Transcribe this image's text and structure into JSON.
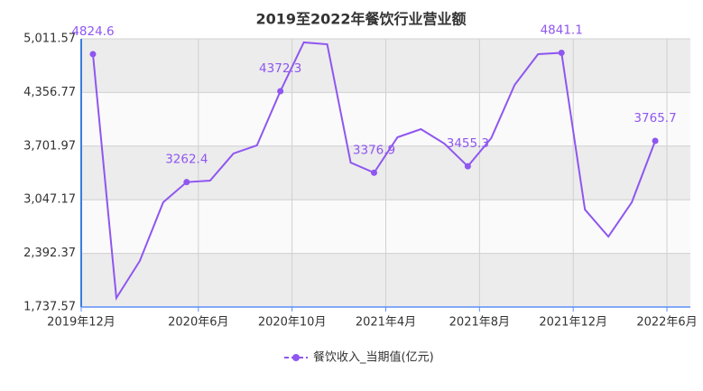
{
  "chart_data": {
    "type": "line",
    "title": "2019至2022年餐饮行业营业额",
    "categories": [
      "2019年12月",
      null,
      null,
      null,
      null,
      "2020年6月",
      null,
      null,
      null,
      "2020年10月",
      null,
      null,
      null,
      "2021年4月",
      null,
      null,
      null,
      "2021年8月",
      null,
      null,
      null,
      "2021年12月",
      null,
      null,
      null,
      "2022年6月"
    ],
    "series": [
      {
        "name": "餐饮收入_当期值(亿元)",
        "color": "#8f56f0",
        "values": [
          4824.6,
          1848,
          2300,
          3016,
          3262.4,
          3281,
          3612,
          3711,
          4372.3,
          4968,
          4945,
          3501,
          3376.9,
          3810,
          3909,
          3733,
          3455.3,
          3799,
          4449,
          4824,
          4841.1,
          2928,
          2597,
          3016,
          3765.7,
          null
        ]
      }
    ],
    "ylim": [
      1737.57,
      5011.57
    ],
    "yticks": [
      {
        "value": 1737.57,
        "label": "1,737.57"
      },
      {
        "value": 2392.37,
        "label": "2,392.37"
      },
      {
        "value": 3047.17,
        "label": "3,047.17"
      },
      {
        "value": 3701.97,
        "label": "3,701.97"
      },
      {
        "value": 4356.77,
        "label": "4,356.77"
      },
      {
        "value": 5011.57,
        "label": "5,011.57"
      }
    ],
    "grid": true
  }
}
